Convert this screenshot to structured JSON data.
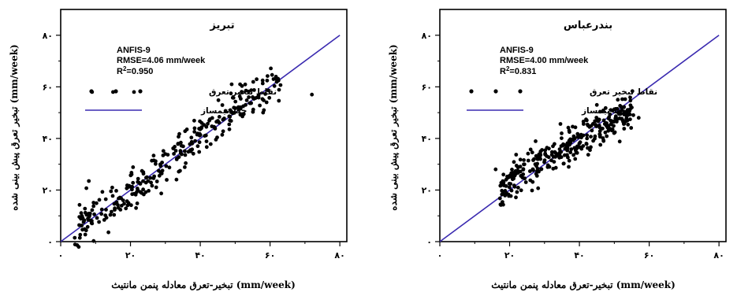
{
  "chart_data": [
    {
      "type": "scatter",
      "title": "تبریز",
      "xlabel": "(mm/week) تبخیر-تعرق معادله پنمن مانتیث",
      "ylabel": "(mm/week) تبخیر تعرق پیش بینی شده",
      "xlim": [
        0,
        82
      ],
      "ylim": [
        0,
        90
      ],
      "xticks": [
        0,
        20,
        40,
        60,
        80
      ],
      "yticks": [
        0,
        20,
        40,
        60,
        80
      ],
      "xtick_labels": [
        "۰",
        "۲۰",
        "۴۰",
        "۶۰",
        "۸۰"
      ],
      "ytick_labels": [
        "۰",
        "۲۰",
        "۴۰",
        "۶۰",
        "۸۰"
      ],
      "stats": {
        "model": "ANFIS-9",
        "rmse": "RMSE=4.06 mm/week",
        "r2_prefix": "R",
        "r2_sup": "2",
        "r2_value": "=0.950"
      },
      "legend": {
        "points": "نقاط تبخیر تعرق",
        "line": "خط نیمساز"
      },
      "line_color": "#3a2ab0",
      "point_color": "#000000",
      "reference_line": [
        [
          0,
          0
        ],
        [
          80,
          80
        ]
      ],
      "cloud": {
        "seed": 11,
        "count": 300,
        "x_range": [
          4,
          63
        ],
        "slope": 1.0,
        "offset": 0.5,
        "spread": 4.2
      },
      "extra_points": [
        [
          9,
          58
        ],
        [
          15,
          58
        ],
        [
          21,
          58
        ],
        [
          72,
          57
        ],
        [
          49,
          61
        ],
        [
          61,
          63
        ],
        [
          53,
          53
        ],
        [
          58,
          50
        ],
        [
          55,
          56
        ],
        [
          59,
          54
        ]
      ]
    },
    {
      "type": "scatter",
      "title": "بندرعباس",
      "xlabel": "(mm/week) تبخیر-تعرق معادله پنمن مانتیث",
      "ylabel": "(mm/week) تبخیر تعرق پیش بینی شده",
      "xlim": [
        0,
        82
      ],
      "ylim": [
        0,
        90
      ],
      "xticks": [
        0,
        20,
        40,
        60,
        80
      ],
      "yticks": [
        0,
        20,
        40,
        60,
        80
      ],
      "xtick_labels": [
        "۰",
        "۲۰",
        "۴۰",
        "۶۰",
        "۸۰"
      ],
      "ytick_labels": [
        "۰",
        "۲۰",
        "۴۰",
        "۶۰",
        "۸۰"
      ],
      "stats": {
        "model": "ANFIS-9",
        "rmse": "RMSE=4.00 mm/week",
        "r2_prefix": "R",
        "r2_sup": "2",
        "r2_value": "=0.831"
      },
      "legend": {
        "points": "نقاط تبخیر تعرق",
        "line": "خط نیمساز"
      },
      "line_color": "#3a2ab0",
      "point_color": "#000000",
      "reference_line": [
        [
          0,
          0
        ],
        [
          80,
          80
        ]
      ],
      "cloud": {
        "seed": 29,
        "count": 320,
        "x_range": [
          17,
          56
        ],
        "slope": 0.78,
        "offset": 8.0,
        "spread": 3.6
      },
      "extra_points": [
        [
          16,
          28
        ],
        [
          19,
          24
        ],
        [
          27,
          32
        ],
        [
          55,
          52
        ],
        [
          57,
          48
        ],
        [
          51,
          55
        ],
        [
          49,
          51
        ],
        [
          45,
          53
        ],
        [
          42,
          38
        ],
        [
          47,
          47
        ]
      ]
    }
  ]
}
